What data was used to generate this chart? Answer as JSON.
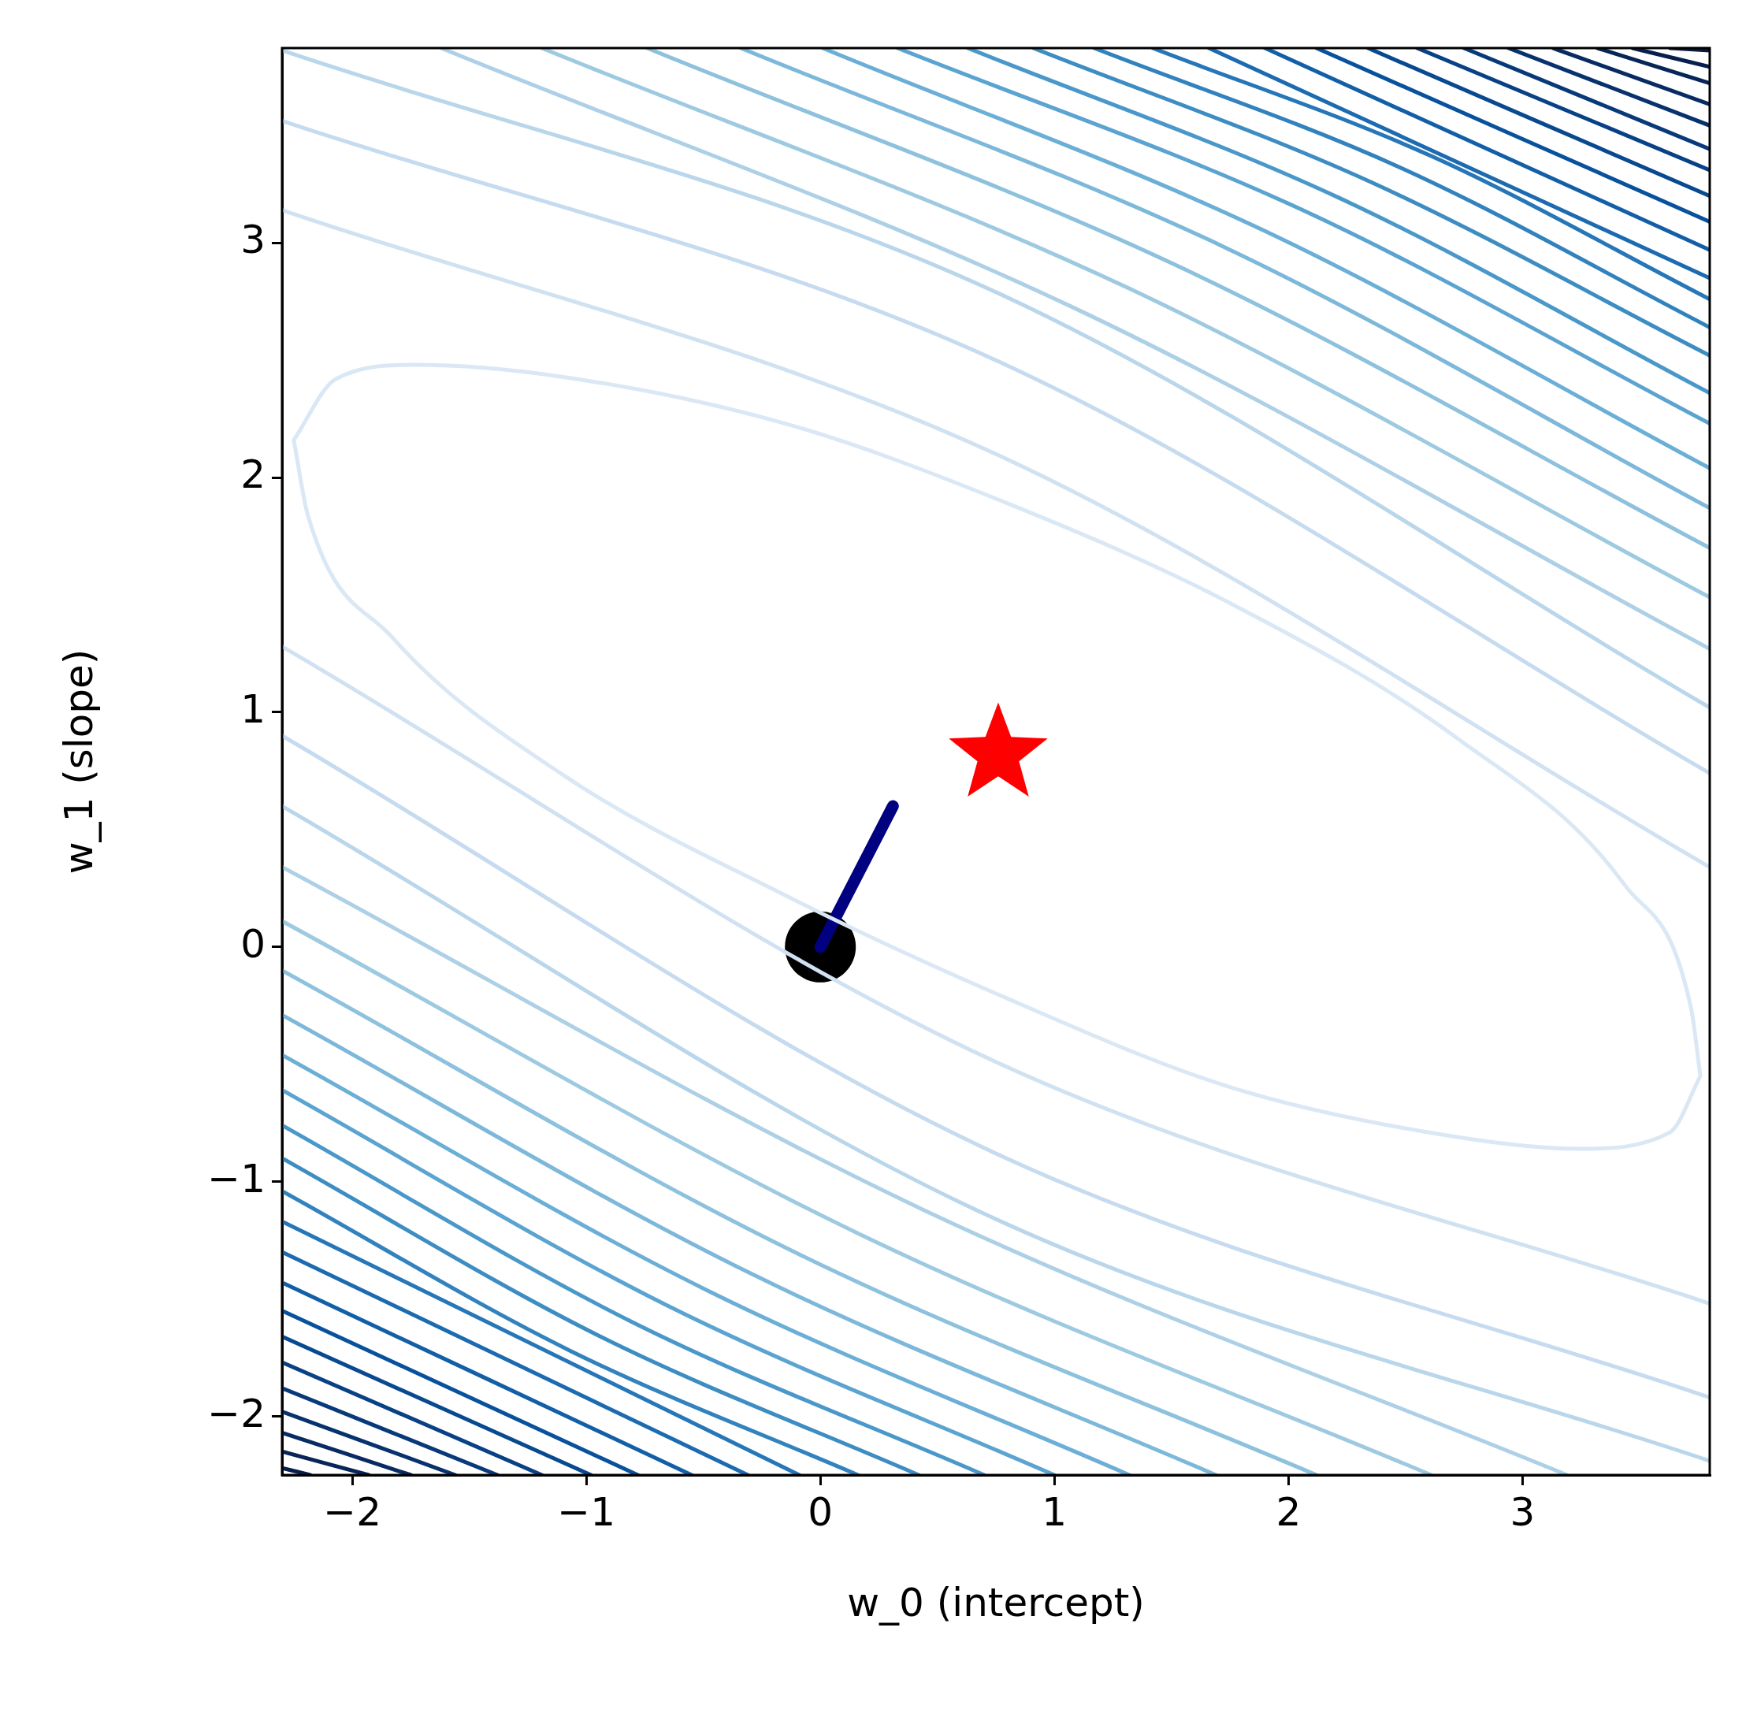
{
  "chart_data": {
    "type": "line",
    "xlabel": "w_0 (intercept)",
    "ylabel": "w_1 (slope)",
    "xlim": [
      -2.3,
      3.8
    ],
    "ylim": [
      -2.25,
      3.83
    ],
    "xticks": [
      {
        "value": -2,
        "label": "−2"
      },
      {
        "value": -1,
        "label": "−1"
      },
      0,
      1,
      2,
      3
    ],
    "yticks": [
      {
        "value": -2,
        "label": "−2"
      },
      {
        "value": -1,
        "label": "−1"
      },
      0,
      1,
      2,
      3
    ],
    "series": [
      {
        "color": "#dae8f5",
        "x": [
          -2.25,
          -2.07,
          -1.73,
          -1.11,
          -0.15,
          0.8,
          1.76,
          2.72,
          3.44,
          3.72,
          3.76,
          null,
          -2.25,
          -2.19,
          -1.83,
          -1.11,
          -0.15,
          0.8,
          1.76,
          2.72,
          3.24,
          3.63,
          3.76
        ],
        "values": [
          2.16,
          2.42,
          2.48,
          2.43,
          2.23,
          1.89,
          1.46,
          0.89,
          0.26,
          -0.26,
          -0.55,
          null,
          2.16,
          1.84,
          1.32,
          0.74,
          0.22,
          -0.22,
          -0.6,
          -0.81,
          -0.86,
          -0.79,
          -0.55
        ]
      },
      {
        "color": "#d0e2f2",
        "x": [
          -2.3,
          0.75,
          3.8,
          null,
          -2.3,
          0.75,
          3.8
        ],
        "values": [
          3.14,
          2.1,
          0.34,
          null,
          1.28,
          -0.49,
          -1.52
        ]
      },
      {
        "color": "#c6dbef",
        "x": [
          -2.3,
          0.75,
          3.8,
          null,
          -2.3,
          0.75,
          3.8
        ],
        "values": [
          3.52,
          2.5,
          0.74,
          null,
          0.9,
          -0.88,
          -1.92
        ]
      },
      {
        "color": "#bad6eb",
        "x": [
          -2.3,
          0.75,
          3.8,
          null,
          -2.3,
          0.75,
          3.8
        ],
        "values": [
          3.82,
          2.79,
          1.02,
          null,
          0.6,
          -1.16,
          -2.19
        ]
      },
      {
        "color": "#add0e6",
        "x": [
          -1.62,
          1.09,
          3.8,
          null,
          -2.3,
          0.44,
          3.19
        ],
        "values": [
          3.83,
          2.72,
          1.27,
          null,
          0.34,
          -1.12,
          -2.25
        ]
      },
      {
        "color": "#9ecae1",
        "x": [
          -1.19,
          1.31,
          3.8,
          null,
          -2.3,
          0.16,
          2.61
        ],
        "values": [
          3.83,
          2.81,
          1.49,
          null,
          0.11,
          -1.22,
          -2.25
        ]
      },
      {
        "color": "#8dc1dd",
        "x": [
          -0.74,
          1.53,
          3.8,
          null,
          -2.3,
          -0.09,
          2.12
        ],
        "values": [
          3.83,
          2.9,
          1.7,
          null,
          -0.1,
          -1.31,
          -2.25
        ]
      },
      {
        "color": "#7db8da",
        "x": [
          -0.34,
          1.73,
          3.8,
          null,
          -2.3,
          -0.3,
          1.69
        ],
        "values": [
          3.83,
          2.98,
          1.87,
          null,
          -0.29,
          -1.39,
          -2.25
        ]
      },
      {
        "color": "#6baed6",
        "x": [
          0.01,
          1.9,
          3.8,
          null,
          -2.3,
          -0.49,
          1.32
        ],
        "values": [
          3.83,
          3.05,
          2.04,
          null,
          -0.46,
          -1.46,
          -2.25
        ]
      },
      {
        "color": "#5ba3d0",
        "x": [
          0.33,
          2.06,
          3.8,
          null,
          -2.3,
          -0.65,
          1.0
        ],
        "values": [
          3.83,
          3.14,
          2.23,
          null,
          -0.61,
          -1.53,
          -2.25
        ]
      },
      {
        "color": "#4a98c9",
        "x": [
          0.63,
          2.22,
          3.8,
          null,
          -2.3,
          -0.8,
          0.7
        ],
        "values": [
          3.83,
          3.19,
          2.36,
          null,
          -0.76,
          -1.6,
          -2.25
        ]
      },
      {
        "color": "#3d8dc3",
        "x": [
          0.91,
          2.35,
          3.8,
          null,
          -2.3,
          -0.94,
          0.42
        ],
        "values": [
          3.83,
          3.26,
          2.52,
          null,
          -0.9,
          -1.66,
          -2.25
        ]
      },
      {
        "color": "#3182bd",
        "x": [
          1.17,
          2.48,
          3.8,
          null,
          -2.3,
          -1.07,
          0.16
        ],
        "values": [
          3.83,
          3.32,
          2.64,
          null,
          -1.04,
          -1.72,
          -2.25
        ]
      },
      {
        "color": "#2676b8",
        "x": [
          1.42,
          2.61,
          3.8,
          null,
          -2.3,
          -0.09
        ],
        "values": [
          3.83,
          3.37,
          2.76,
          null,
          -1.17,
          -2.25
        ]
      },
      {
        "color": "#1c6ab0",
        "x": [
          1.66,
          3.8,
          null,
          -2.3,
          -0.31
        ],
        "values": [
          3.83,
          2.85,
          null,
          -1.3,
          -2.25
        ]
      },
      {
        "color": "#135fa7",
        "x": [
          1.9,
          3.8,
          null,
          -2.3,
          -0.55
        ],
        "values": [
          3.83,
          2.97,
          null,
          -1.43,
          -2.25
        ]
      },
      {
        "color": "#08519c",
        "x": [
          2.12,
          3.8,
          null,
          -2.3,
          -0.78
        ],
        "values": [
          3.83,
          3.09,
          null,
          -1.55,
          -2.25
        ]
      },
      {
        "color": "#084990",
        "x": [
          2.34,
          3.8,
          null,
          -2.3,
          -0.98
        ],
        "values": [
          3.83,
          3.2,
          null,
          -1.66,
          -2.25
        ]
      },
      {
        "color": "#084185",
        "x": [
          2.55,
          3.8,
          null,
          -2.3,
          -1.19
        ],
        "values": [
          3.83,
          3.31,
          null,
          -1.77,
          -2.25
        ]
      },
      {
        "color": "#083979",
        "x": [
          2.75,
          3.8,
          null,
          -2.3,
          -1.38
        ],
        "values": [
          3.83,
          3.4,
          null,
          -1.88,
          -2.25
        ]
      },
      {
        "color": "#08326e",
        "x": [
          2.94,
          3.8,
          null,
          -2.3,
          -1.56
        ],
        "values": [
          3.83,
          3.5,
          null,
          -1.98,
          -2.25
        ]
      },
      {
        "color": "#082b63",
        "x": [
          3.13,
          3.8,
          null,
          -2.3,
          -1.75
        ],
        "values": [
          3.83,
          3.59,
          null,
          -2.07,
          -2.25
        ]
      },
      {
        "color": "#082558",
        "x": [
          3.32,
          3.8,
          null,
          -2.3,
          -1.93
        ],
        "values": [
          3.83,
          3.68,
          null,
          -2.15,
          -2.25
        ]
      },
      {
        "color": "#081f4e",
        "x": [
          3.47,
          3.8,
          null,
          -2.3,
          -2.18
        ],
        "values": [
          3.83,
          3.75,
          null,
          -2.22,
          -2.25
        ]
      },
      {
        "color": "#08193f",
        "x": [
          3.63,
          3.8
        ],
        "values": [
          3.83,
          3.82
        ]
      },
      {
        "color": "#000080",
        "x": [
          0,
          0.31
        ],
        "values": [
          0,
          0.6
        ]
      },
      {
        "type": "scatter",
        "marker": "circle",
        "color": "#000000",
        "x": [
          0
        ],
        "values": [
          0
        ]
      },
      {
        "type": "scatter",
        "marker": "star",
        "color": "#ff0000",
        "x": [
          0.76
        ],
        "values": [
          0.82
        ]
      }
    ]
  }
}
